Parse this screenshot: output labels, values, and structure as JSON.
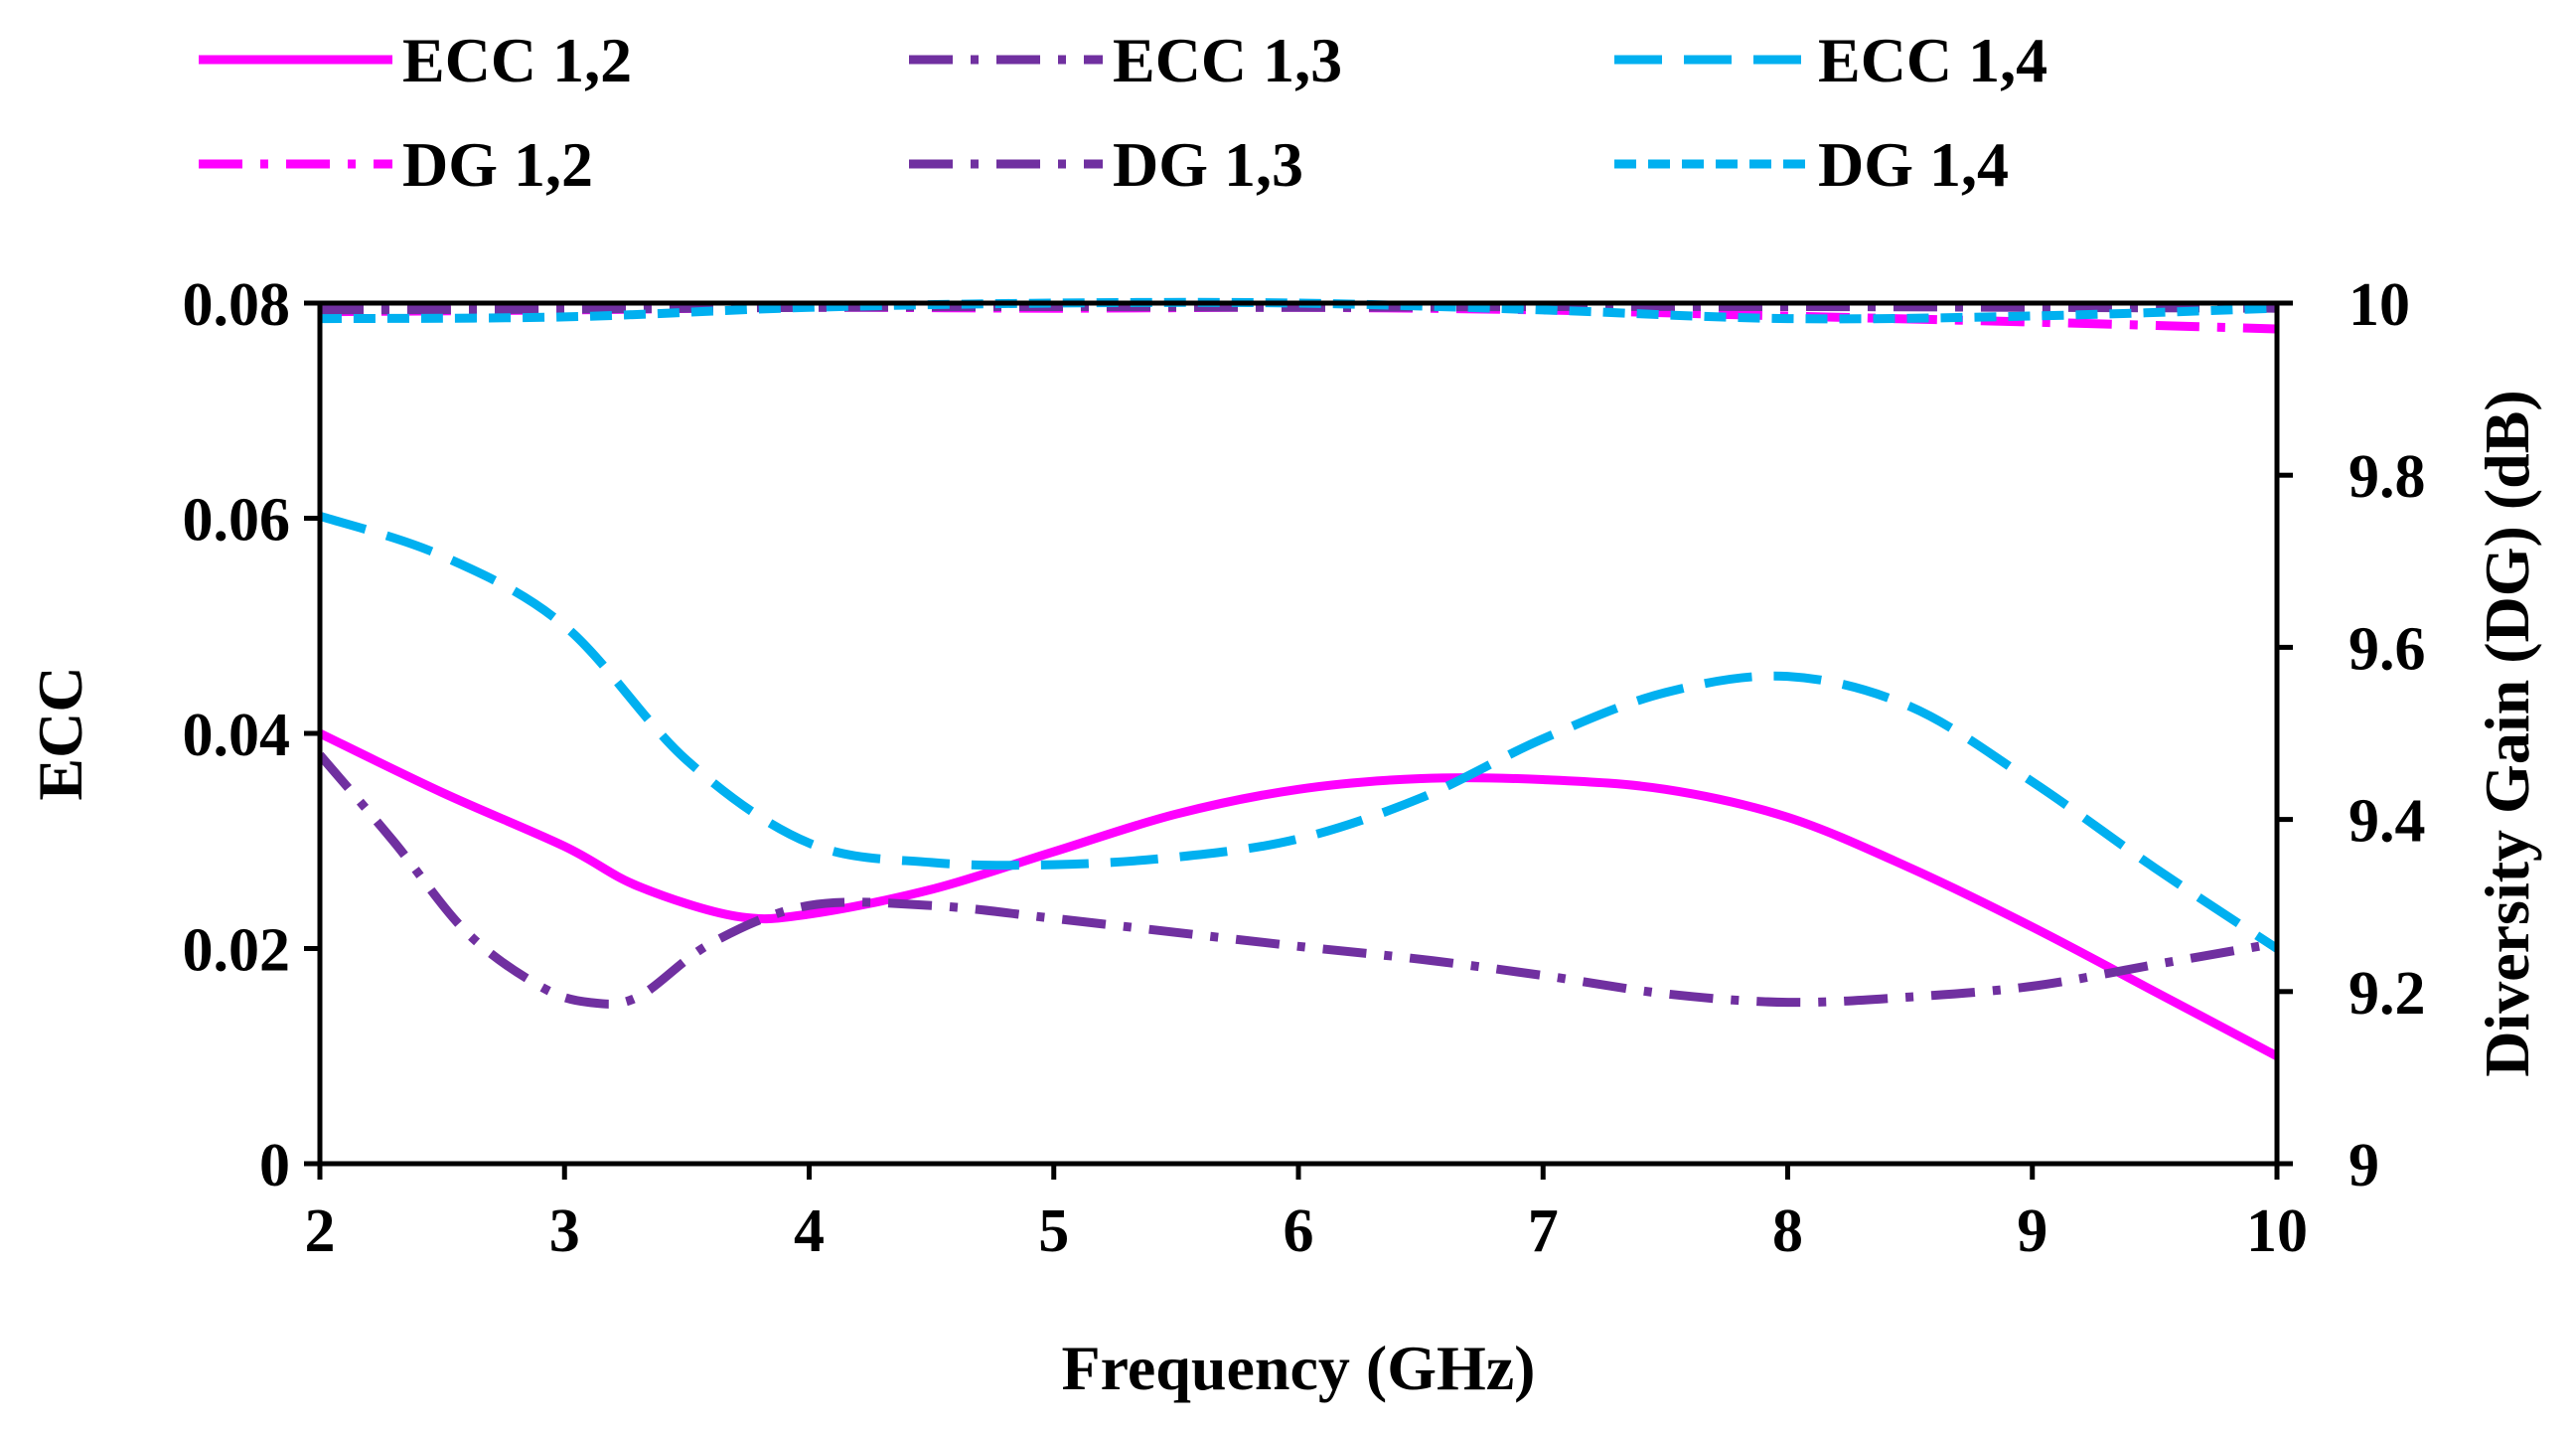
{
  "chart_data": {
    "type": "line",
    "xlabel": "Frequency (GHz)",
    "ylabel_left": "ECC",
    "ylabel_right": "Diversity Gain (DG) (dB)",
    "xlim": [
      2,
      10
    ],
    "ylim_left": [
      0,
      0.08
    ],
    "ylim_right": [
      9,
      10
    ],
    "x_ticks": [
      2,
      3,
      4,
      5,
      6,
      7,
      8,
      9,
      10
    ],
    "y_left_ticks": [
      "0",
      "0.02",
      "0.04",
      "0.06",
      "0.08"
    ],
    "y_right_ticks": [
      "9",
      "9.2",
      "9.4",
      "9.6",
      "9.8",
      "10"
    ],
    "legend_position": "top",
    "colors": {
      "magenta": "#ff00ff",
      "purple": "#7030a0",
      "cyan": "#00b0f0"
    },
    "series": [
      {
        "name": "ECC 1,2",
        "axis": "left",
        "color": "#ff00ff",
        "style": "solid",
        "x": [
          2,
          2.5,
          3,
          3.3,
          3.7,
          4,
          4.5,
          5,
          5.5,
          6,
          6.5,
          7,
          7.5,
          8,
          8.5,
          9,
          9.5,
          10
        ],
        "values": [
          0.04,
          0.0345,
          0.0295,
          0.0258,
          0.023,
          0.0232,
          0.0255,
          0.029,
          0.0325,
          0.0348,
          0.0358,
          0.0357,
          0.0348,
          0.0322,
          0.0275,
          0.022,
          0.016,
          0.01
        ]
      },
      {
        "name": "ECC 1,3",
        "axis": "left",
        "color": "#7030a0",
        "style": "dashdot",
        "x": [
          2,
          2.3,
          2.6,
          2.9,
          3.1,
          3.3,
          3.6,
          4,
          4.5,
          5,
          5.5,
          6,
          6.5,
          7,
          7.5,
          8,
          8.5,
          9,
          9.5,
          10
        ],
        "values": [
          0.038,
          0.03,
          0.0215,
          0.0165,
          0.015,
          0.0155,
          0.0205,
          0.024,
          0.024,
          0.0228,
          0.0215,
          0.0202,
          0.019,
          0.0175,
          0.0158,
          0.015,
          0.0155,
          0.0165,
          0.0185,
          0.0205
        ]
      },
      {
        "name": "ECC 1,4",
        "axis": "left",
        "color": "#00b0f0",
        "style": "dashed",
        "x": [
          2,
          2.5,
          3,
          3.5,
          4,
          4.5,
          5,
          5.5,
          6,
          6.5,
          7,
          7.5,
          8,
          8.5,
          9,
          9.5,
          10
        ],
        "values": [
          0.0602,
          0.0565,
          0.05,
          0.0375,
          0.0298,
          0.028,
          0.0278,
          0.0285,
          0.0302,
          0.034,
          0.0395,
          0.0438,
          0.0453,
          0.0425,
          0.0355,
          0.0275,
          0.02
        ]
      },
      {
        "name": "DG 1,2",
        "axis": "right",
        "color": "#ff00ff",
        "style": "dashdot",
        "x": [
          2,
          3,
          4,
          5,
          6,
          7,
          8,
          9,
          10
        ],
        "values": [
          9.99,
          9.992,
          9.995,
          9.994,
          9.995,
          9.992,
          9.985,
          9.978,
          9.97
        ]
      },
      {
        "name": "DG 1,3",
        "axis": "right",
        "color": "#7030a0",
        "style": "dashdot",
        "x": [
          2,
          3,
          4,
          5,
          6,
          7,
          8,
          9,
          10
        ],
        "values": [
          9.992,
          9.993,
          9.995,
          9.996,
          9.995,
          9.996,
          9.996,
          9.995,
          9.994
        ]
      },
      {
        "name": "DG 1,4",
        "axis": "right",
        "color": "#00b0f0",
        "style": "shortdash",
        "x": [
          2,
          3,
          4,
          5,
          6,
          7,
          8,
          9,
          10
        ],
        "values": [
          9.982,
          9.984,
          9.995,
          10.0,
          10.0,
          9.992,
          9.982,
          9.985,
          9.994
        ]
      }
    ]
  }
}
